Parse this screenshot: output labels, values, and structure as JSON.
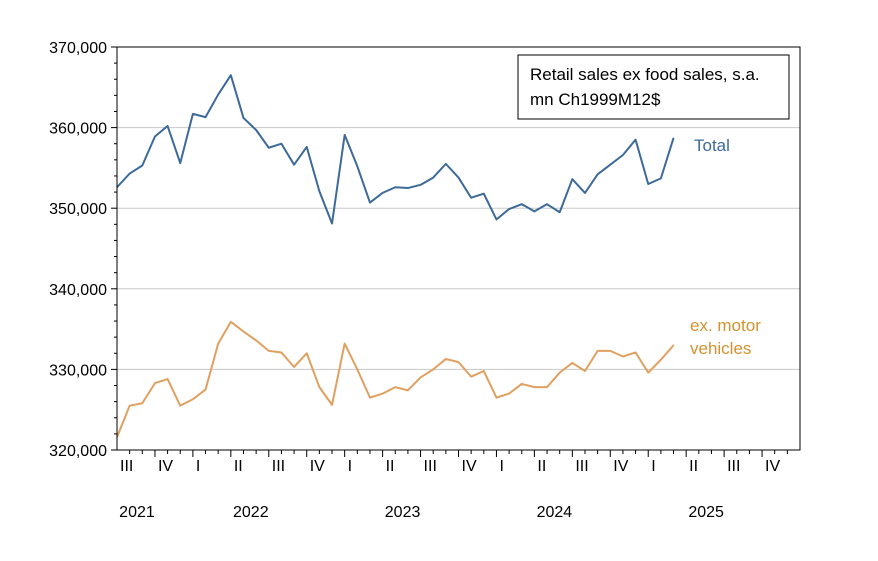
{
  "chart_data": {
    "type": "line",
    "legend": [
      "Retail sales ex food sales, s.a.",
      "mn Ch1999M12$"
    ],
    "ylim": [
      320000,
      370000
    ],
    "y_ticks": [
      320000,
      330000,
      340000,
      350000,
      360000,
      370000
    ],
    "y_tick_labels": [
      "320,000",
      "330,000",
      "340,000",
      "350,000",
      "360,000",
      "370,000"
    ],
    "x_quarter_labels": [
      "III",
      "IV",
      "I",
      "II",
      "III",
      "IV",
      "I",
      "II",
      "III",
      "IV",
      "I",
      "II",
      "III",
      "IV",
      "I",
      "II",
      "III",
      "IV"
    ],
    "x_year_labels": [
      {
        "label": "2021",
        "quarter_index": 0.5
      },
      {
        "label": "2022",
        "quarter_index": 3.5
      },
      {
        "label": "2023",
        "quarter_index": 7.5
      },
      {
        "label": "2024",
        "quarter_index": 11.5
      },
      {
        "label": "2025",
        "quarter_index": 15.5
      }
    ],
    "x_range_months": [
      0,
      54
    ],
    "series": [
      {
        "name": "Total",
        "color": "#3d6a99",
        "values": [
          352600,
          354300,
          355300,
          358900,
          360200,
          355600,
          361700,
          361300,
          364100,
          366500,
          361200,
          359700,
          357500,
          358000,
          355400,
          357600,
          352100,
          348100,
          359100,
          355200,
          350700,
          351900,
          352600,
          352500,
          352900,
          353800,
          355500,
          353800,
          351300,
          351800,
          348600,
          349900,
          350500,
          349600,
          350500,
          349500,
          353600,
          351900,
          354200,
          355400,
          356600,
          358500,
          353000,
          353700,
          358700
        ]
      },
      {
        "name": "ex. motor vehicles",
        "color": "#e0a060",
        "values": [
          321600,
          325500,
          325800,
          328300,
          328800,
          325500,
          326300,
          327500,
          333200,
          335900,
          334700,
          333600,
          332300,
          332100,
          330300,
          332000,
          327800,
          325600,
          333200,
          330000,
          326500,
          327000,
          327800,
          327400,
          329000,
          330000,
          331300,
          330900,
          329100,
          329800,
          326500,
          327000,
          328200,
          327800,
          327800,
          329600,
          330800,
          329800,
          332300,
          332300,
          331600,
          332100,
          329600,
          331200,
          333000
        ]
      }
    ]
  }
}
